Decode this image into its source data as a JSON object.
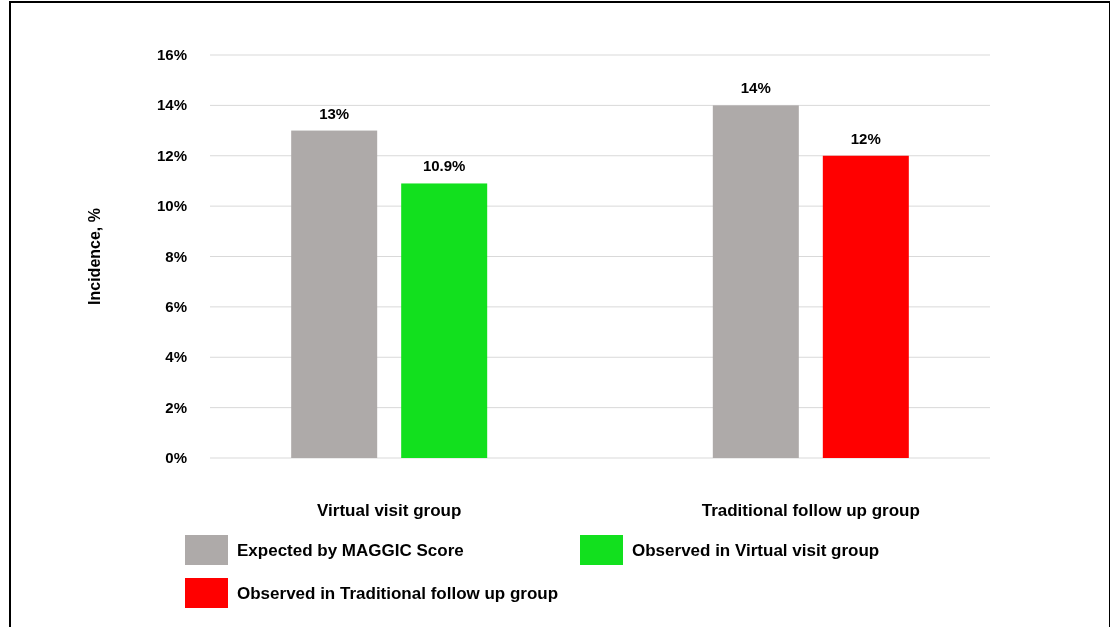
{
  "chart_data": {
    "type": "bar",
    "ylabel": "Incidence, %",
    "categories": [
      "Virtual visit group",
      "Traditional follow up group"
    ],
    "series": [
      {
        "name": "Expected by MAGGIC Score",
        "color": "#aeaaa9",
        "values": [
          13,
          14
        ],
        "value_labels": [
          "13%",
          "14%"
        ]
      },
      {
        "name": "Observed in Virtual visit group",
        "color": "#12e01e",
        "values": [
          10.9,
          null
        ],
        "value_labels": [
          "10.9%",
          null
        ]
      },
      {
        "name": "Observed in Traditional follow up group",
        "color": "#ff0000",
        "values": [
          null,
          12
        ],
        "value_labels": [
          null,
          "12%"
        ]
      }
    ],
    "ylim": [
      0,
      16
    ],
    "yticks": [
      {
        "value": 0,
        "label": "0%"
      },
      {
        "value": 2,
        "label": "2%"
      },
      {
        "value": 4,
        "label": "4%"
      },
      {
        "value": 6,
        "label": "6%"
      },
      {
        "value": 8,
        "label": "8%"
      },
      {
        "value": 10,
        "label": "10%"
      },
      {
        "value": 12,
        "label": "12%"
      },
      {
        "value": 14,
        "label": "14%"
      },
      {
        "value": 16,
        "label": "16%"
      }
    ],
    "grid": "y",
    "legend": "bottom"
  }
}
